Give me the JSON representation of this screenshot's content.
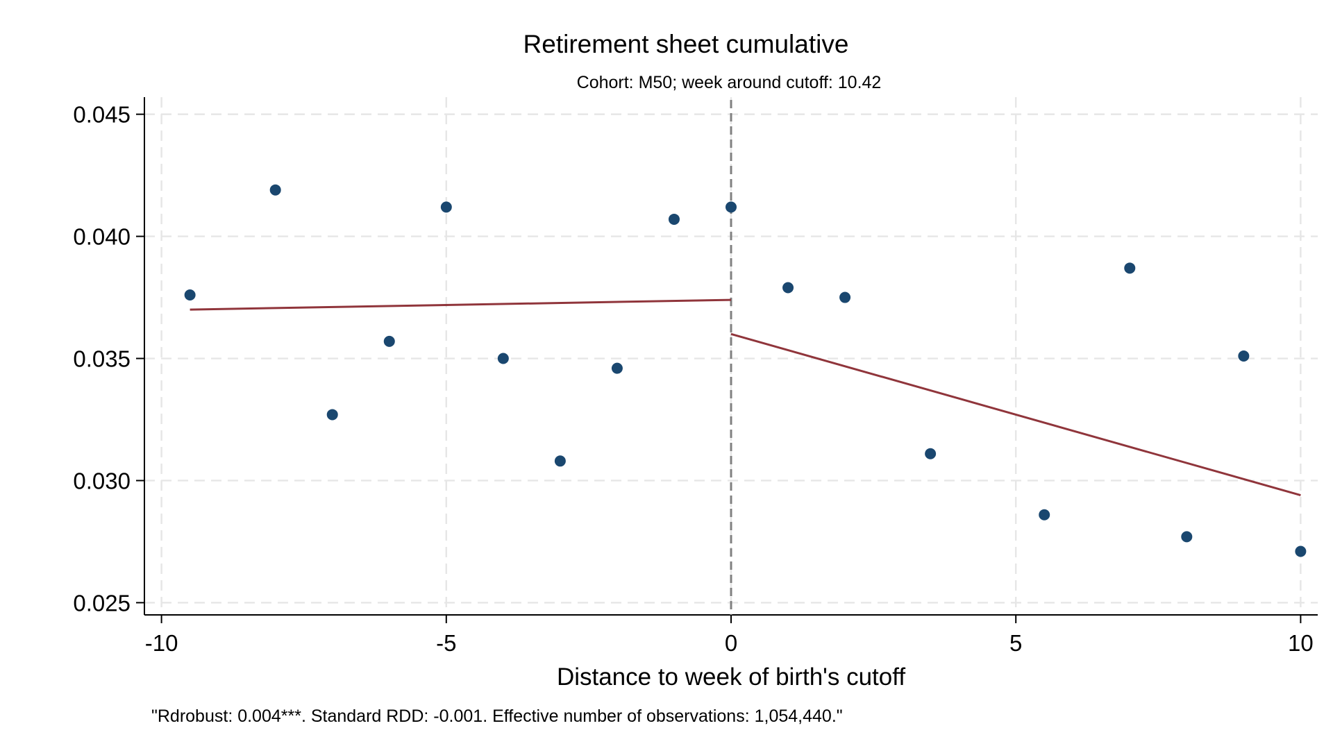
{
  "chart_data": {
    "type": "scatter",
    "title": "Retirement sheet cumulative",
    "subtitle": "Cohort: M50; week around cutoff:   10.42",
    "xlabel": "Distance to week of birth's cutoff",
    "ylabel": "",
    "note": "\"Rdrobust: 0.004***. Standard RDD: -0.001. Effective number of observations: 1,054,440.\"",
    "xlim": [
      -10.3,
      10.3
    ],
    "ylim": [
      0.0245,
      0.0457
    ],
    "x_ticks": [
      -10,
      -5,
      0,
      5,
      10
    ],
    "x_tick_labels": [
      "-10",
      "-5",
      "0",
      "5",
      "10"
    ],
    "y_ticks": [
      0.025,
      0.03,
      0.035,
      0.04,
      0.045
    ],
    "y_tick_labels": [
      "0.025",
      "0.030",
      "0.035",
      "0.040",
      "0.045"
    ],
    "grid": true,
    "cutoff_x": 0,
    "points": [
      {
        "x": -9.5,
        "y": 0.0376
      },
      {
        "x": -8,
        "y": 0.0419
      },
      {
        "x": -7,
        "y": 0.0327
      },
      {
        "x": -6,
        "y": 0.0357
      },
      {
        "x": -5,
        "y": 0.0412
      },
      {
        "x": -4,
        "y": 0.035
      },
      {
        "x": -3,
        "y": 0.0308
      },
      {
        "x": -2,
        "y": 0.0346
      },
      {
        "x": -1,
        "y": 0.0407
      },
      {
        "x": 0,
        "y": 0.0412
      },
      {
        "x": 1,
        "y": 0.0379
      },
      {
        "x": 2,
        "y": 0.0375
      },
      {
        "x": 3.5,
        "y": 0.0311
      },
      {
        "x": 5.5,
        "y": 0.0286
      },
      {
        "x": 7,
        "y": 0.0387
      },
      {
        "x": 8,
        "y": 0.0277
      },
      {
        "x": 9,
        "y": 0.0351
      },
      {
        "x": 10,
        "y": 0.0271
      }
    ],
    "fit_lines": [
      {
        "x": [
          -9.5,
          0
        ],
        "y": [
          0.037,
          0.0374
        ]
      },
      {
        "x": [
          0,
          10
        ],
        "y": [
          0.036,
          0.0294
        ]
      }
    ],
    "colors": {
      "points": "#1a476f",
      "fit": "#90353b",
      "cutoff": "#808080",
      "grid": "#e6e6e6"
    }
  }
}
